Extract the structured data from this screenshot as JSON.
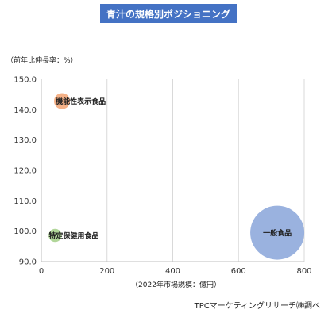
{
  "chart_data": {
    "type": "bubble",
    "title": "青汁の規格別ポジショニング",
    "ylabel": "（前年比伸長率：%）",
    "xlabel": "（2022年市場規模：億円）",
    "source": "TPCマーケティングリサーチ㈱調べ",
    "xlim": [
      0,
      800
    ],
    "ylim": [
      90,
      150
    ],
    "xticks": [
      "0",
      "200",
      "400",
      "600",
      "800"
    ],
    "yticks": [
      "90.0",
      "100.0",
      "110.0",
      "120.0",
      "130.0",
      "140.0",
      "150.0"
    ],
    "grid": "vertical",
    "series": [
      {
        "label": "機能性表示食品",
        "x": 63,
        "y": 142.8,
        "size": 63,
        "color": "#f4a97a"
      },
      {
        "label": "特定保健用食品",
        "x": 42,
        "y": 98.6,
        "size": 42,
        "color": "#a9d18e"
      },
      {
        "label": "一般食品",
        "x": 718,
        "y": 99.5,
        "size": 718,
        "color": "#8faadc"
      }
    ]
  }
}
